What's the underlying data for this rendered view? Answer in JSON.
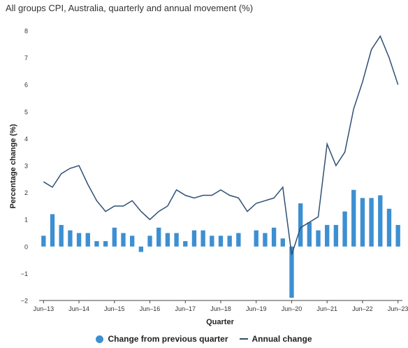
{
  "title": "All groups CPI, Australia, quarterly and annual movement (%)",
  "colors": {
    "bar": "#3d8fd1",
    "line": "#2f4f73",
    "grid": "#e3e3e3",
    "axis": "#444444"
  },
  "chart_data": {
    "type": "bar",
    "title": "All groups CPI, Australia, quarterly and annual movement (%)",
    "xlabel": "Quarter",
    "ylabel": "Percentage change (%)",
    "ylim": [
      -2,
      8
    ],
    "yticks": [
      -2,
      -1,
      0,
      1,
      2,
      3,
      4,
      5,
      6,
      7,
      8
    ],
    "grid": false,
    "legend_position": "bottom",
    "categories": [
      "Jun-13",
      "Sep-13",
      "Dec-13",
      "Mar-14",
      "Jun-14",
      "Sep-14",
      "Dec-14",
      "Mar-15",
      "Jun-15",
      "Sep-15",
      "Dec-15",
      "Mar-16",
      "Jun-16",
      "Sep-16",
      "Dec-16",
      "Mar-17",
      "Jun-17",
      "Sep-17",
      "Dec-17",
      "Mar-18",
      "Jun-18",
      "Sep-18",
      "Dec-18",
      "Mar-19",
      "Jun-19",
      "Sep-19",
      "Dec-19",
      "Mar-20",
      "Jun-20",
      "Sep-20",
      "Dec-20",
      "Mar-21",
      "Jun-21",
      "Sep-21",
      "Dec-21",
      "Mar-22",
      "Jun-22",
      "Sep-22",
      "Dec-22",
      "Mar-23",
      "Jun-23"
    ],
    "tick_labels": [
      "Jun–13",
      "Jun–14",
      "Jun–15",
      "Jun–16",
      "Jun–17",
      "Jun–18",
      "Jun–19",
      "Jun–20",
      "Jun–21",
      "Jun–22",
      "Jun–23"
    ],
    "series": [
      {
        "name": "Change from previous quarter",
        "type": "bar",
        "values": [
          0.4,
          1.2,
          0.8,
          0.6,
          0.5,
          0.5,
          0.2,
          0.2,
          0.7,
          0.5,
          0.4,
          -0.2,
          0.4,
          0.7,
          0.5,
          0.5,
          0.2,
          0.6,
          0.6,
          0.4,
          0.4,
          0.4,
          0.5,
          0.0,
          0.6,
          0.5,
          0.7,
          0.3,
          -1.9,
          1.6,
          0.9,
          0.6,
          0.8,
          0.8,
          1.3,
          2.1,
          1.8,
          1.8,
          1.9,
          1.4,
          0.8
        ]
      },
      {
        "name": "Annual change",
        "type": "line",
        "values": [
          2.4,
          2.2,
          2.7,
          2.9,
          3.0,
          2.3,
          1.7,
          1.3,
          1.5,
          1.5,
          1.7,
          1.3,
          1.0,
          1.3,
          1.5,
          2.1,
          1.9,
          1.8,
          1.9,
          1.9,
          2.1,
          1.9,
          1.8,
          1.3,
          1.6,
          1.7,
          1.8,
          2.2,
          -0.3,
          0.7,
          0.9,
          1.1,
          3.8,
          3.0,
          3.5,
          5.1,
          6.1,
          7.3,
          7.8,
          7.0,
          6.0
        ]
      }
    ]
  }
}
